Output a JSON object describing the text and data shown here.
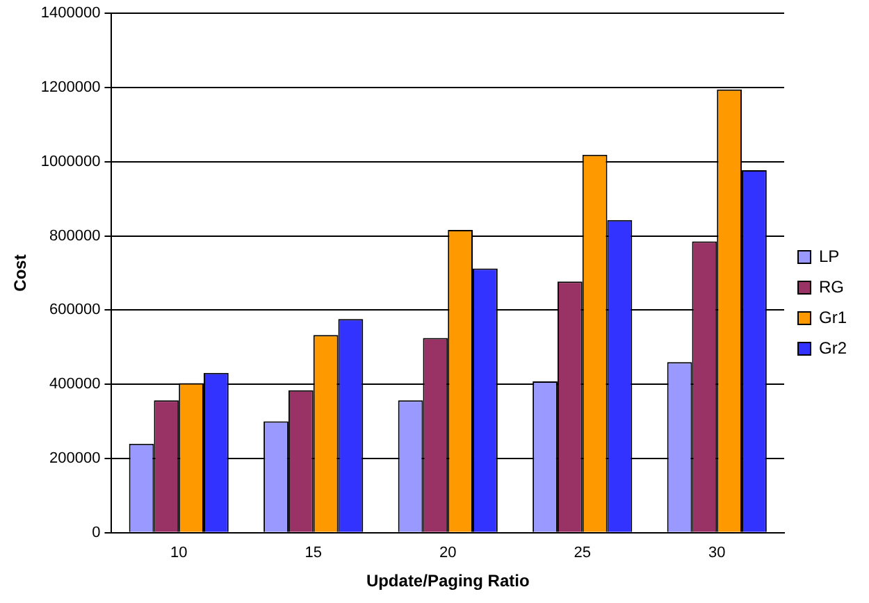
{
  "chart_data": {
    "type": "bar",
    "categories": [
      "10",
      "15",
      "20",
      "25",
      "30"
    ],
    "series": [
      {
        "name": "LP",
        "color": "#9999ff",
        "values": [
          240000,
          300000,
          357000,
          408000,
          460000
        ]
      },
      {
        "name": "RG",
        "color": "#993366",
        "values": [
          357000,
          384000,
          525000,
          677000,
          785000
        ]
      },
      {
        "name": "Gr1",
        "color": "#ff9900",
        "values": [
          403000,
          533000,
          816000,
          1019000,
          1195000
        ]
      },
      {
        "name": "Gr2",
        "color": "#3333ff",
        "values": [
          431000,
          576000,
          712000,
          843000,
          977000
        ]
      }
    ],
    "xlabel": "Update/Paging Ratio",
    "ylabel": "Cost",
    "ylim": [
      0,
      1400000
    ],
    "yticks": [
      0,
      200000,
      400000,
      600000,
      800000,
      1000000,
      1200000,
      1400000
    ],
    "grid": "y",
    "legend": "right"
  }
}
